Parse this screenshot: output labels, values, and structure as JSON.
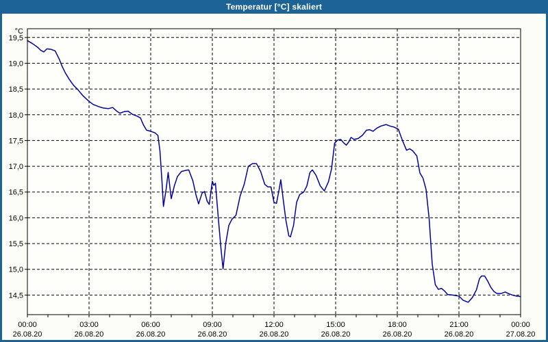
{
  "window": {
    "title": "Temperatur [°C] skaliert",
    "titlebar_color": "#1d6395",
    "border_color": "#1d6395",
    "content_background": "#fcfdf6"
  },
  "chart_data": {
    "type": "line",
    "title": "Temperatur [°C] skaliert",
    "plot_bg": "#fefefb",
    "grid": {
      "show": true,
      "color": "#000000",
      "dash": "4,3"
    },
    "x_axis": {
      "unit": "time",
      "xlim": [
        0,
        24
      ],
      "major_tick_hours": [
        0,
        3,
        6,
        9,
        12,
        15,
        18,
        21,
        24
      ],
      "minor_tick_step_hours": 1,
      "tick_labels": [
        {
          "time": "00:00",
          "date": "26.08.20"
        },
        {
          "time": "03:00",
          "date": "26.08.20"
        },
        {
          "time": "06:00",
          "date": "26.08.20"
        },
        {
          "time": "09:00",
          "date": "26.08.20"
        },
        {
          "time": "12:00",
          "date": "26.08.20"
        },
        {
          "time": "15:00",
          "date": "26.08.20"
        },
        {
          "time": "18:00",
          "date": "26.08.20"
        },
        {
          "time": "21:00",
          "date": "26.08.20"
        },
        {
          "time": "00:00",
          "date": "27.08.20"
        }
      ]
    },
    "y_axis": {
      "unit_label": "°C",
      "ylim": [
        14.12,
        19.67
      ],
      "ticks": [
        19.5,
        19.0,
        18.5,
        18.0,
        17.5,
        17.0,
        16.5,
        16.0,
        15.5,
        15.0,
        14.5
      ],
      "tick_labels": [
        "19,5",
        "19,0",
        "18,5",
        "18,0",
        "17,5",
        "17,0",
        "16,5",
        "16,0",
        "15,5",
        "15,0",
        "14,5"
      ]
    },
    "series": [
      {
        "name": "Temperatur",
        "color": "#0000a0",
        "points": [
          [
            0,
            19.44
          ],
          [
            0.25,
            19.38
          ],
          [
            0.5,
            19.31
          ],
          [
            0.65,
            19.25
          ],
          [
            0.8,
            19.22
          ],
          [
            0.95,
            19.28
          ],
          [
            1.15,
            19.27
          ],
          [
            1.35,
            19.24
          ],
          [
            1.55,
            19.08
          ],
          [
            1.7,
            18.93
          ],
          [
            1.85,
            18.81
          ],
          [
            2.05,
            18.68
          ],
          [
            2.25,
            18.57
          ],
          [
            2.45,
            18.49
          ],
          [
            2.7,
            18.37
          ],
          [
            3,
            18.26
          ],
          [
            3.2,
            18.2
          ],
          [
            3.45,
            18.16
          ],
          [
            3.7,
            18.13
          ],
          [
            3.95,
            18.12
          ],
          [
            4.15,
            18.14
          ],
          [
            4.35,
            18.07
          ],
          [
            4.5,
            18.03
          ],
          [
            4.7,
            18.06
          ],
          [
            4.9,
            18.07
          ],
          [
            5.1,
            18.01
          ],
          [
            5.3,
            17.98
          ],
          [
            5.5,
            17.94
          ],
          [
            5.65,
            17.8
          ],
          [
            5.8,
            17.7
          ],
          [
            6,
            17.68
          ],
          [
            6.2,
            17.65
          ],
          [
            6.35,
            17.6
          ],
          [
            6.45,
            17.3
          ],
          [
            6.55,
            16.7
          ],
          [
            6.62,
            16.22
          ],
          [
            6.75,
            16.55
          ],
          [
            6.85,
            16.88
          ],
          [
            7,
            16.37
          ],
          [
            7.15,
            16.62
          ],
          [
            7.3,
            16.8
          ],
          [
            7.5,
            16.9
          ],
          [
            7.7,
            16.92
          ],
          [
            7.85,
            16.93
          ],
          [
            8.05,
            16.72
          ],
          [
            8.2,
            16.45
          ],
          [
            8.33,
            16.27
          ],
          [
            8.5,
            16.48
          ],
          [
            8.62,
            16.51
          ],
          [
            8.75,
            16.32
          ],
          [
            8.85,
            16.26
          ],
          [
            9,
            16.71
          ],
          [
            9.07,
            16.63
          ],
          [
            9.15,
            16.67
          ],
          [
            9.3,
            15.95
          ],
          [
            9.42,
            15.4
          ],
          [
            9.52,
            15.01
          ],
          [
            9.65,
            15.5
          ],
          [
            9.8,
            15.85
          ],
          [
            9.95,
            15.97
          ],
          [
            10.15,
            16.05
          ],
          [
            10.35,
            16.42
          ],
          [
            10.55,
            16.65
          ],
          [
            10.75,
            17.0
          ],
          [
            10.95,
            17.05
          ],
          [
            11.15,
            17.05
          ],
          [
            11.35,
            16.9
          ],
          [
            11.55,
            16.65
          ],
          [
            11.7,
            16.6
          ],
          [
            11.85,
            16.6
          ],
          [
            12,
            16.3
          ],
          [
            12.12,
            16.28
          ],
          [
            12.25,
            16.55
          ],
          [
            12.33,
            16.74
          ],
          [
            12.45,
            16.35
          ],
          [
            12.58,
            15.95
          ],
          [
            12.72,
            15.65
          ],
          [
            12.8,
            15.63
          ],
          [
            12.95,
            15.85
          ],
          [
            13.1,
            16.3
          ],
          [
            13.25,
            16.45
          ],
          [
            13.45,
            16.5
          ],
          [
            13.6,
            16.62
          ],
          [
            13.75,
            16.88
          ],
          [
            13.87,
            16.93
          ],
          [
            14.05,
            16.82
          ],
          [
            14.25,
            16.62
          ],
          [
            14.45,
            16.52
          ],
          [
            14.65,
            16.7
          ],
          [
            14.8,
            16.95
          ],
          [
            14.95,
            17.45
          ],
          [
            15.1,
            17.51
          ],
          [
            15.25,
            17.52
          ],
          [
            15.4,
            17.45
          ],
          [
            15.52,
            17.41
          ],
          [
            15.65,
            17.48
          ],
          [
            15.75,
            17.56
          ],
          [
            15.9,
            17.52
          ],
          [
            16.1,
            17.54
          ],
          [
            16.3,
            17.6
          ],
          [
            16.5,
            17.7
          ],
          [
            16.65,
            17.71
          ],
          [
            16.82,
            17.68
          ],
          [
            17,
            17.74
          ],
          [
            17.2,
            17.78
          ],
          [
            17.45,
            17.81
          ],
          [
            17.65,
            17.78
          ],
          [
            17.85,
            17.76
          ],
          [
            18.05,
            17.72
          ],
          [
            18.25,
            17.5
          ],
          [
            18.45,
            17.31
          ],
          [
            18.6,
            17.34
          ],
          [
            18.75,
            17.3
          ],
          [
            18.95,
            17.2
          ],
          [
            19.1,
            16.87
          ],
          [
            19.25,
            16.77
          ],
          [
            19.4,
            16.55
          ],
          [
            19.55,
            15.98
          ],
          [
            19.7,
            15.1
          ],
          [
            19.85,
            14.7
          ],
          [
            20,
            14.61
          ],
          [
            20.15,
            14.63
          ],
          [
            20.3,
            14.58
          ],
          [
            20.45,
            14.51
          ],
          [
            20.7,
            14.5
          ],
          [
            21,
            14.48
          ],
          [
            21.2,
            14.4
          ],
          [
            21.45,
            14.36
          ],
          [
            21.65,
            14.45
          ],
          [
            21.85,
            14.6
          ],
          [
            22,
            14.82
          ],
          [
            22.1,
            14.87
          ],
          [
            22.25,
            14.87
          ],
          [
            22.4,
            14.77
          ],
          [
            22.55,
            14.65
          ],
          [
            22.7,
            14.57
          ],
          [
            22.85,
            14.53
          ],
          [
            23.05,
            14.53
          ],
          [
            23.25,
            14.56
          ],
          [
            23.4,
            14.53
          ],
          [
            23.6,
            14.5
          ],
          [
            23.8,
            14.48
          ],
          [
            24,
            14.47
          ]
        ]
      }
    ]
  }
}
